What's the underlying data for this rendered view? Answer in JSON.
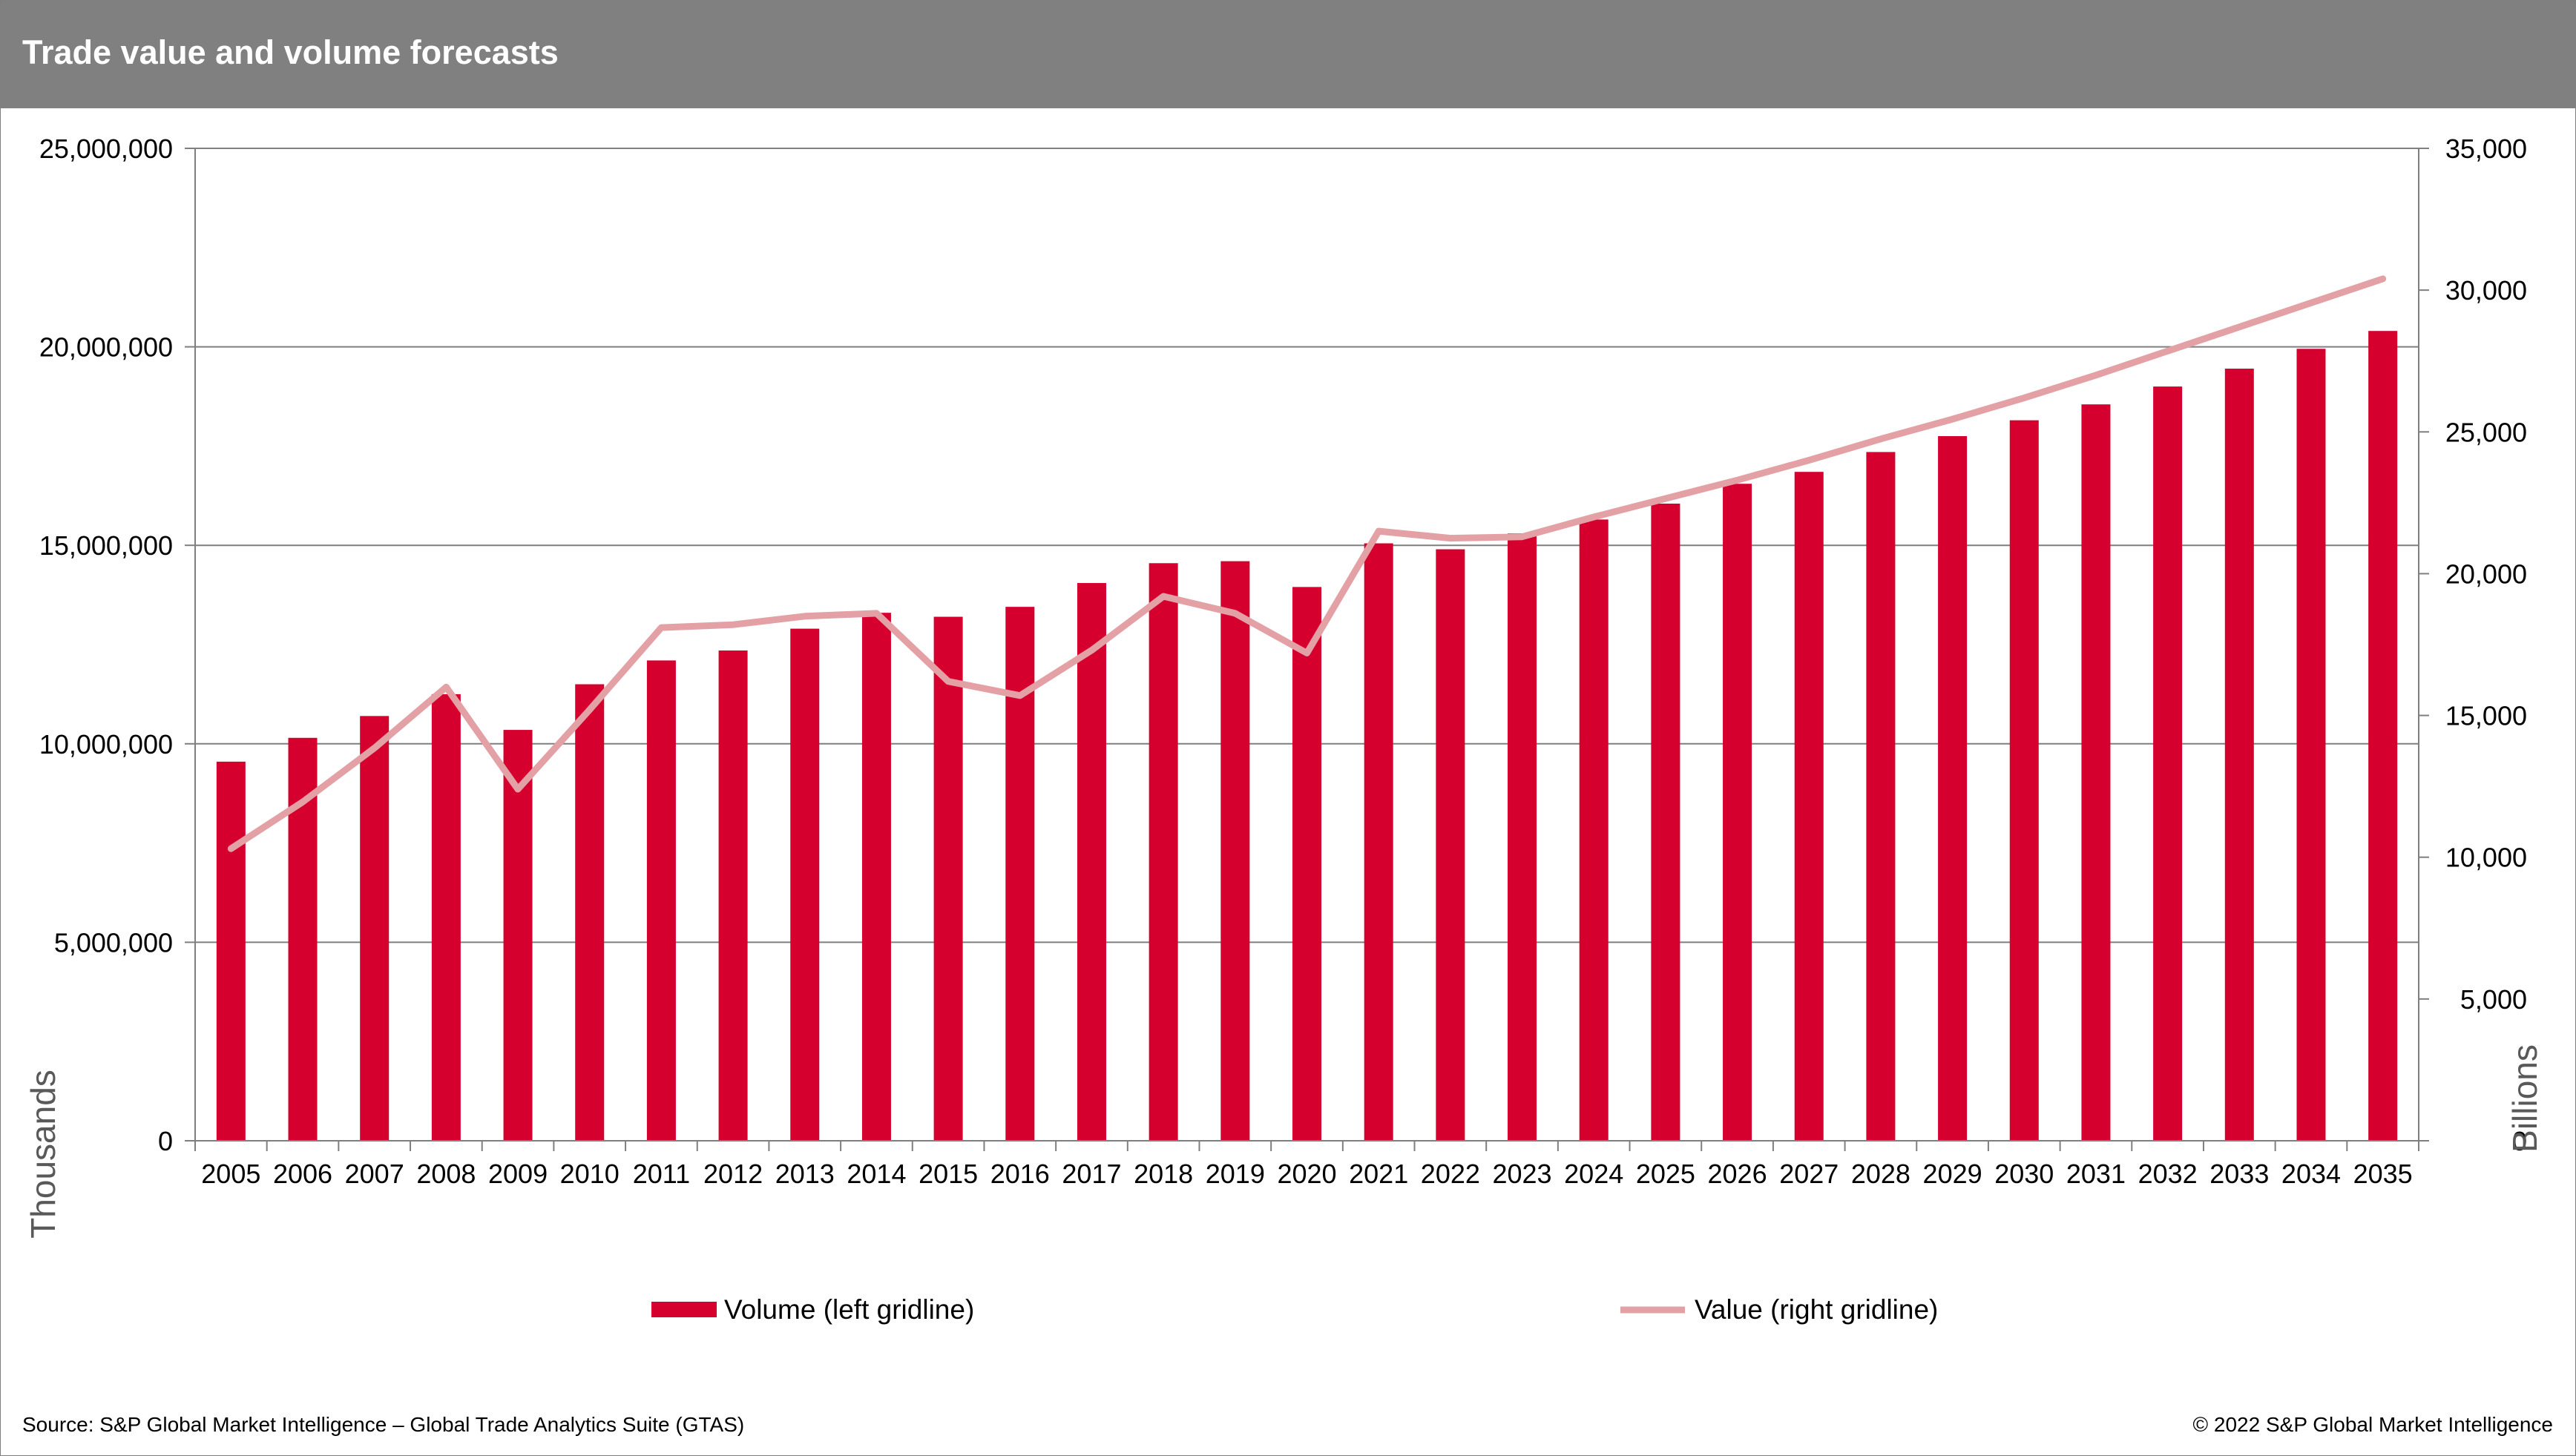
{
  "header": {
    "title": "Trade value and volume forecasts"
  },
  "footer": {
    "source": "Source: S&P Global Market Intelligence – Global Trade Analytics Suite (GTAS)",
    "copyright": "© 2022 S&P Global Market Intelligence"
  },
  "colors": {
    "header_bg": "#808080",
    "volume": "#d6002f",
    "value": "#e3a1a6",
    "gridline": "#7f7f7f"
  },
  "chart_data": {
    "type": "bar",
    "title": "Trade value and volume forecasts",
    "categories": [
      "2005",
      "2006",
      "2007",
      "2008",
      "2009",
      "2010",
      "2011",
      "2012",
      "2013",
      "2014",
      "2015",
      "2016",
      "2017",
      "2018",
      "2019",
      "2020",
      "2021",
      "2022",
      "2023",
      "2024",
      "2025",
      "2026",
      "2027",
      "2028",
      "2029",
      "2030",
      "2031",
      "2032",
      "2033",
      "2034",
      "2035"
    ],
    "series": [
      {
        "name": "Volume (left gridline)",
        "type": "bar",
        "axis": "left",
        "color": "#d6002f",
        "values": [
          9550000,
          10150000,
          10700000,
          11250000,
          10350000,
          11500000,
          12100000,
          12350000,
          12900000,
          13300000,
          13200000,
          13450000,
          14050000,
          14550000,
          14600000,
          13950000,
          15050000,
          14900000,
          15300000,
          15650000,
          16050000,
          16550000,
          16850000,
          17350000,
          17750000,
          18150000,
          18550000,
          19000000,
          19450000,
          19950000,
          20400000
        ]
      },
      {
        "name": "Value (right gridline)",
        "type": "line",
        "axis": "right",
        "color": "#e3a1a6",
        "values": [
          10300,
          11950,
          13850,
          16000,
          12400,
          15200,
          18100,
          18200,
          18500,
          18600,
          16200,
          15700,
          17300,
          19200,
          18600,
          17200,
          21500,
          21250,
          21300,
          22000,
          22650,
          23300,
          24000,
          24750,
          25450,
          26200,
          27000,
          27850,
          28700,
          29550,
          30400
        ]
      }
    ],
    "y_left": {
      "label": "Thousands",
      "min": 0,
      "max": 25000000,
      "ticks": [
        "0",
        "5,000,000",
        "10,000,000",
        "15,000,000",
        "20,000,000",
        "25,000,000"
      ]
    },
    "y_right": {
      "label": "Billions",
      "min": 0,
      "max": 35000,
      "ticks": [
        "0",
        "5,000",
        "10,000",
        "15,000",
        "20,000",
        "25,000",
        "30,000",
        "35,000"
      ]
    },
    "grid": true,
    "legend": {
      "placement": "bottom",
      "items": [
        "Volume (left gridline)",
        "Value (right gridline)"
      ]
    }
  }
}
